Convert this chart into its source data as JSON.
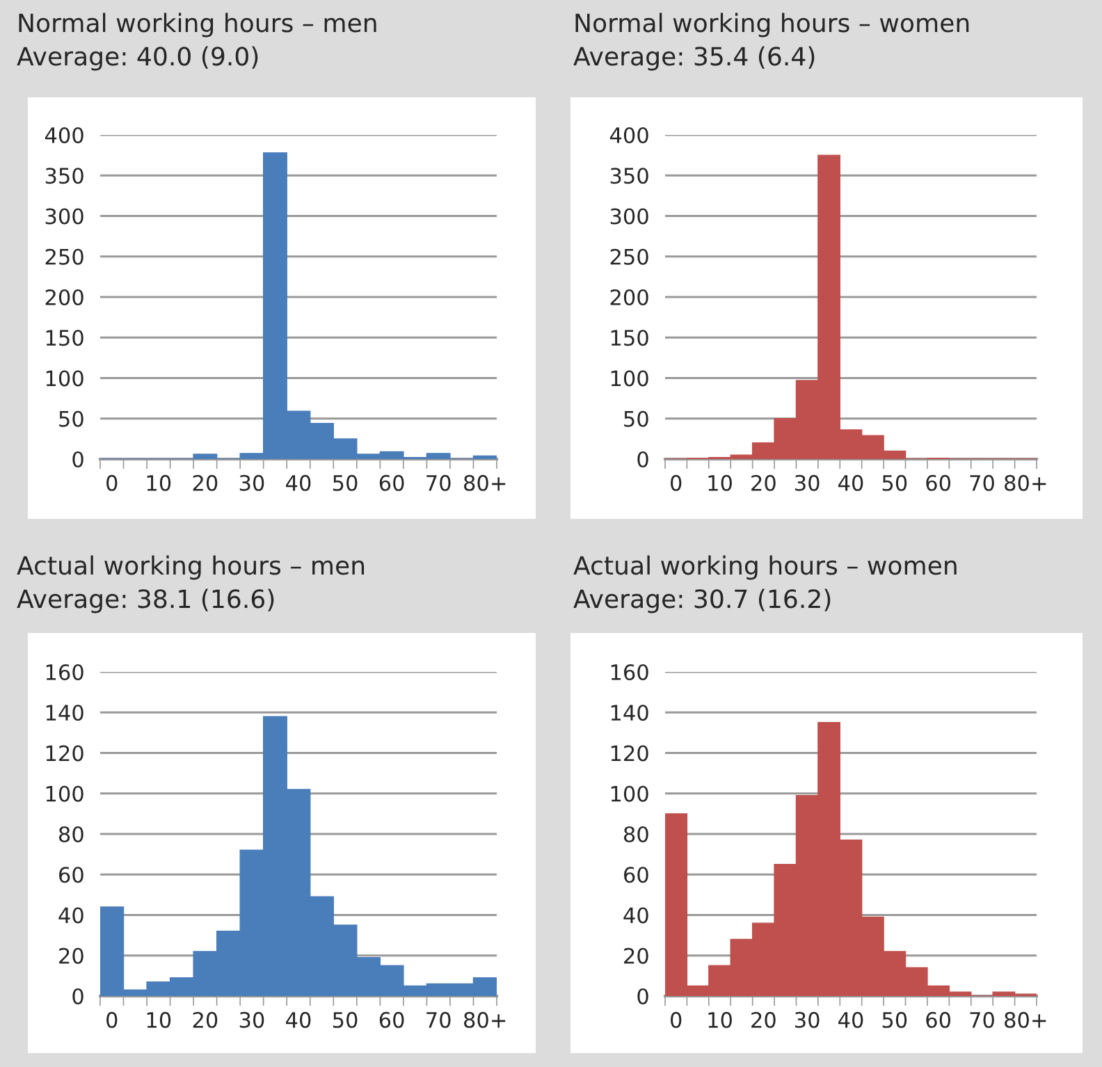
{
  "chart_data": [
    {
      "type": "bar",
      "title": "Normal working hours – men",
      "subtitle": "Average: 40.0 (9.0)",
      "categories": [
        "0",
        null,
        "10",
        null,
        "20",
        null,
        "30",
        null,
        "40",
        null,
        "50",
        null,
        "60",
        null,
        "70",
        null,
        "80+"
      ],
      "values": [
        0,
        0,
        0,
        0,
        6,
        0,
        7,
        378,
        59,
        44,
        25,
        6,
        9,
        2,
        7,
        0,
        4
      ],
      "color": "#4a7ebb",
      "ylim": [
        0,
        400
      ],
      "yticks": [
        0,
        50,
        100,
        150,
        200,
        250,
        300,
        350,
        400
      ],
      "grid": "y"
    },
    {
      "type": "bar",
      "title": "Normal working hours – women",
      "subtitle": "Average: 35.4 (6.4)",
      "categories": [
        "0",
        null,
        "10",
        null,
        "20",
        null,
        "30",
        null,
        "40",
        null,
        "50",
        null,
        "60",
        null,
        "70",
        null,
        "80+"
      ],
      "values": [
        0,
        1,
        2,
        5,
        20,
        50,
        97,
        375,
        36,
        29,
        10,
        0,
        1,
        0,
        0,
        0,
        0
      ],
      "color": "#c0504d",
      "ylim": [
        0,
        400
      ],
      "yticks": [
        0,
        50,
        100,
        150,
        200,
        250,
        300,
        350,
        400
      ],
      "grid": "y"
    },
    {
      "type": "bar",
      "title": "Actual working hours – men",
      "subtitle": "Average: 38.1 (16.6)",
      "categories": [
        "0",
        null,
        "10",
        null,
        "20",
        null,
        "30",
        null,
        "40",
        null,
        "50",
        null,
        "60",
        null,
        "70",
        null,
        "80+"
      ],
      "values": [
        44,
        3,
        7,
        9,
        22,
        32,
        72,
        138,
        102,
        49,
        35,
        19,
        15,
        5,
        6,
        6,
        9
      ],
      "color": "#4a7ebb",
      "ylim": [
        0,
        160
      ],
      "yticks": [
        0,
        20,
        40,
        60,
        80,
        100,
        120,
        140,
        160
      ],
      "grid": "y"
    },
    {
      "type": "bar",
      "title": "Actual working hours – women",
      "subtitle": "Average: 30.7 (16.2)",
      "categories": [
        "0",
        null,
        "10",
        null,
        "20",
        null,
        "30",
        null,
        "40",
        null,
        "50",
        null,
        "60",
        null,
        "70",
        null,
        "80+"
      ],
      "values": [
        90,
        5,
        15,
        28,
        36,
        65,
        99,
        135,
        77,
        39,
        22,
        14,
        5,
        2,
        0,
        2,
        1
      ],
      "color": "#c0504d",
      "ylim": [
        0,
        160
      ],
      "yticks": [
        0,
        20,
        40,
        60,
        80,
        100,
        120,
        140,
        160
      ],
      "grid": "y"
    }
  ]
}
